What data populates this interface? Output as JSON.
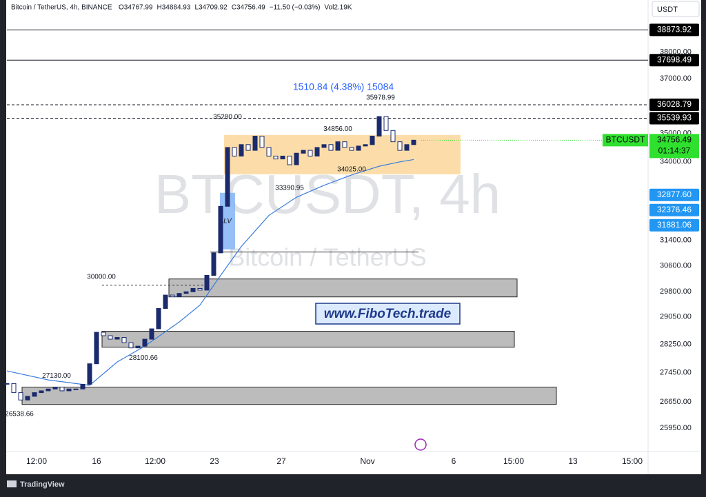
{
  "chart_data": {
    "type": "candlestick",
    "header": "Bitcoin / TetherUS, 4h, BINANCE",
    "ohlc": [
      "O34767.99",
      "H34884.93",
      "L34709.92",
      "C34756.49",
      "−11.50 (−0.03%)",
      "Vol2.19K"
    ],
    "currency": "USDT",
    "watermark": "BTCUSDT, 4h",
    "watermark_sub": "Bitcoin / TetherUS",
    "brand": "TradingView",
    "site": "www.FiboTech.trade",
    "measure": "1510.84 (4.38%) 15084",
    "log_scale": true,
    "color_up": "#1a2a6c",
    "color_down": "#ffffff",
    "closes": [
      27150,
      26900,
      26700,
      26800,
      26900,
      26950,
      27000,
      27050,
      26950,
      27000,
      27000,
      27130,
      27700,
      28600,
      28500,
      28400,
      28450,
      28300,
      28150,
      28200,
      28400,
      28700,
      29300,
      29700,
      29650,
      29750,
      29800,
      29900,
      29850,
      30300,
      31000,
      32500,
      34500,
      34200,
      34600,
      34400,
      34900,
      34500,
      34200,
      34100,
      34200,
      33900,
      34300,
      34400,
      34200,
      34500,
      34600,
      34400,
      34700,
      34500,
      34400,
      34550,
      34600,
      34900,
      35600,
      35100,
      34700,
      34400,
      34600,
      34756.49
    ],
    "ma": {
      "color": "#3b7ddd",
      "x": [
        0,
        6,
        12,
        16,
        20,
        25,
        28,
        31,
        34,
        38,
        42,
        46,
        50,
        54,
        57,
        59
      ],
      "values": [
        27500,
        27250,
        27100,
        27750,
        28200,
        28900,
        29400,
        30300,
        31200,
        32200,
        32800,
        33200,
        33550,
        33850,
        34000,
        34080
      ]
    },
    "xlim": [
      0,
      93
    ],
    "xticks": [
      {
        "value": 4.3,
        "label": "12:00"
      },
      {
        "value": 13,
        "label": "16"
      },
      {
        "value": 21.5,
        "label": "12:00"
      },
      {
        "value": 30.1,
        "label": "23"
      },
      {
        "value": 39.8,
        "label": "27"
      },
      {
        "value": 52.3,
        "label": "Nov"
      },
      {
        "value": 64.8,
        "label": "6"
      },
      {
        "value": 73.5,
        "label": "15:00"
      },
      {
        "value": 82.1,
        "label": "13"
      },
      {
        "value": 90.7,
        "label": "15:00"
      }
    ],
    "ylim": [
      25340,
      40070
    ],
    "yticks": [
      {
        "value": 38000,
        "label": "38000.00"
      },
      {
        "value": 37000,
        "label": "37000.00"
      },
      {
        "value": 35000,
        "label": "35000.00"
      },
      {
        "value": 34000,
        "label": "34000.00"
      },
      {
        "value": 31400,
        "label": "31400.00"
      },
      {
        "value": 30600,
        "label": "30600.00"
      },
      {
        "value": 29800,
        "label": "29800.00"
      },
      {
        "value": 29050,
        "label": "29050.00"
      },
      {
        "value": 28250,
        "label": "28250.00"
      },
      {
        "value": 27450,
        "label": "27450.00"
      },
      {
        "value": 26650,
        "label": "26650.00"
      },
      {
        "value": 25950,
        "label": "25950.00"
      }
    ],
    "levels": [
      {
        "value": 38873.92,
        "label": "38873.92",
        "style": "solid"
      },
      {
        "value": 37698.49,
        "label": "37698.49",
        "style": "solid"
      },
      {
        "value": 36028.79,
        "label": "36028.79",
        "style": "dashed"
      },
      {
        "value": 35539.93,
        "label": "35539.93",
        "style": "dashed"
      }
    ],
    "badges": [
      {
        "value": 32877.6,
        "label": "32877.60",
        "color": "#2196f3"
      },
      {
        "value": 32376.46,
        "label": "32376.46",
        "color": "#2196f3"
      },
      {
        "value": 31881.06,
        "label": "31881.06",
        "color": "#2196f3"
      }
    ],
    "current": {
      "symbol": "BTCUSDT",
      "value": 34756.49,
      "label": "34756.49",
      "countdown": "01:14:37",
      "color": "#2fe02f"
    },
    "zones": [
      {
        "x": [
          31.5,
          65.8
        ],
        "y": [
          33575,
          34940
        ],
        "color": "#fcd9a0"
      },
      {
        "x": [
          23.5,
          74
        ],
        "y": [
          29645,
          30190
        ],
        "color": "#b0b0b0"
      },
      {
        "x": [
          13.8,
          73.6
        ],
        "y": [
          28170,
          28630
        ],
        "color": "#b0b0b0"
      },
      {
        "x": [
          2.2,
          79.7
        ],
        "y": [
          26580,
          27050
        ],
        "color": "#b0b0b0"
      },
      {
        "x": [
          30.9,
          33.1
        ],
        "y": [
          31110,
          32947
        ],
        "color": "#8ab8f5",
        "text": "LV"
      }
    ],
    "lines": [
      {
        "x": [
          13.8,
          29
        ],
        "value": 30000,
        "style": "dashed"
      },
      {
        "x": [
          29.5,
          59.7
        ],
        "value": 31025,
        "style": "solid"
      }
    ],
    "annotations": [
      {
        "x": 32,
        "value": 35280,
        "label": "35280.00",
        "position": "above"
      },
      {
        "x": 48,
        "value": 34856,
        "label": "34856.00",
        "position": "above"
      },
      {
        "x": 41,
        "value": 33390.95,
        "label": "33390.95",
        "position": "below"
      },
      {
        "x": 50,
        "value": 34025,
        "label": "34025.00",
        "position": "below"
      },
      {
        "x": 13.7,
        "value": 30000,
        "label": "30000.00",
        "position": "above"
      },
      {
        "x": 7.2,
        "value": 27130,
        "label": "27130.00",
        "position": "above"
      },
      {
        "x": 19.8,
        "value": 28100.66,
        "label": "28100.66",
        "position": "below"
      },
      {
        "x": 1.8,
        "value": 26538.66,
        "label": "26538.66",
        "position": "below"
      },
      {
        "x": 54.2,
        "value": 35978.99,
        "label": "35978.99",
        "position": "above"
      }
    ]
  }
}
